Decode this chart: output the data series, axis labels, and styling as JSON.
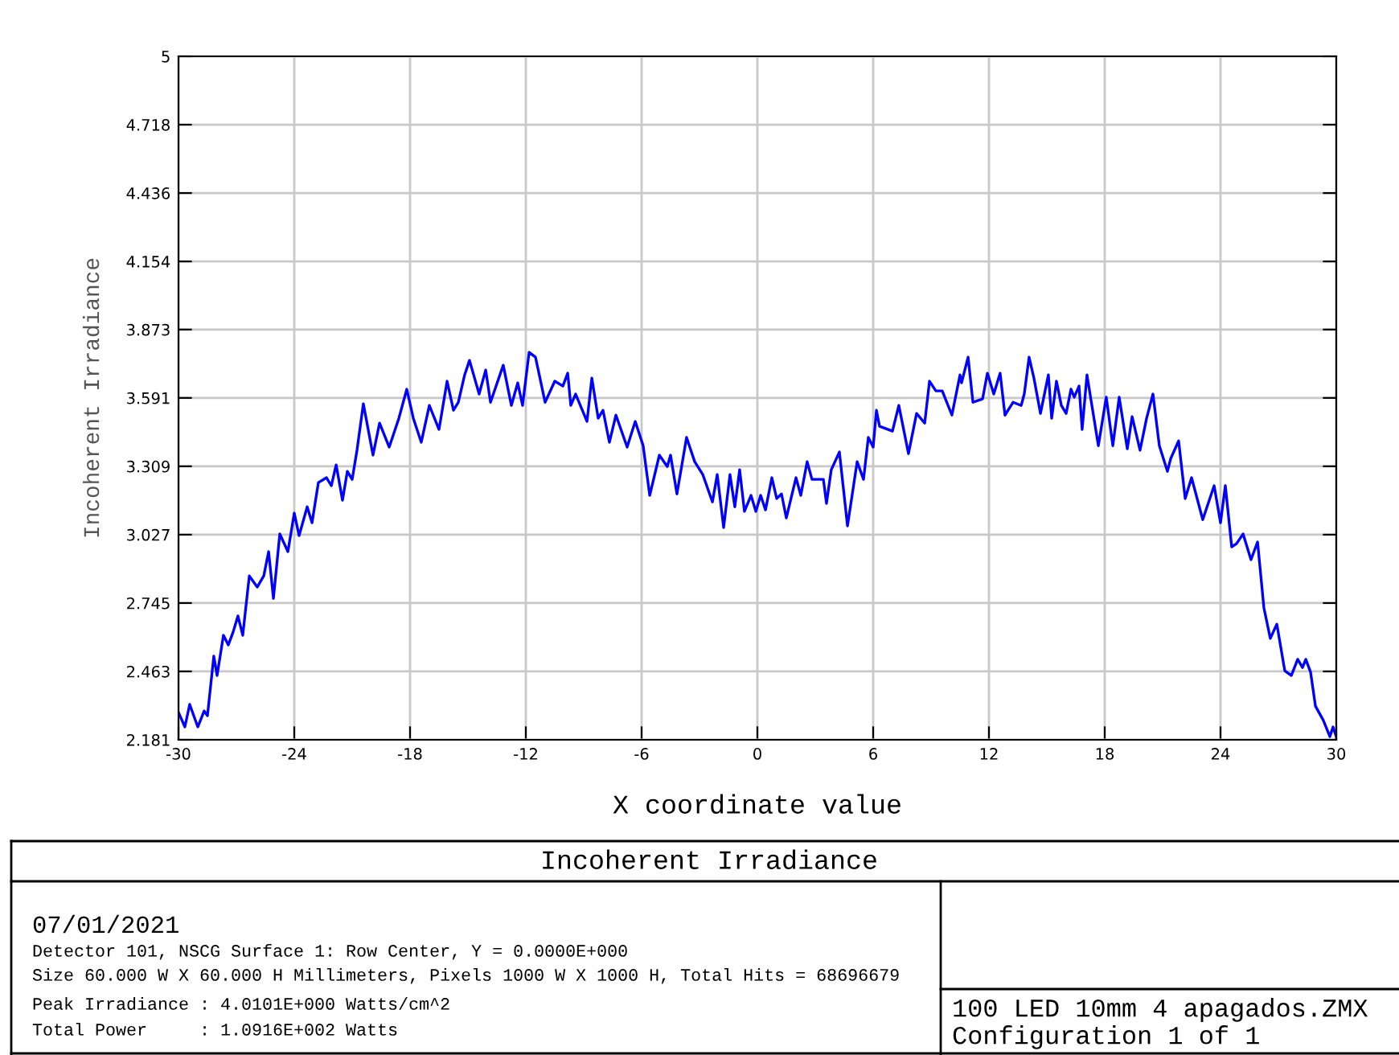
{
  "chart_data": {
    "type": "line",
    "title": "Incoherent Irradiance",
    "xlabel": "X coordinate value",
    "ylabel": "Incoherent Irradiance",
    "annotations": [
      "07/01/2021",
      "Detector 101, NSCG Surface 1: Row Center, Y = 0.0000E+000",
      "Size 60.000 W X 60.000 H Millimeters, Pixels 1000 W X 1000 H, Total Hits = 68696679",
      "Peak Irradiance : 4.0101E+000 Watts/cm^2",
      "Total Power     : 1.0916E+002 Watts",
      "100 LED 10mm 4 apagados.ZMX",
      "Configuration 1 of 1"
    ],
    "xlim": [
      -30,
      30
    ],
    "xticks": [
      -30,
      -24,
      -18,
      -12,
      -6,
      0,
      6,
      12,
      18,
      24,
      30
    ],
    "ylim": [
      2.181,
      5
    ],
    "yticks": [
      2.181,
      2.463,
      2.745,
      3.027,
      3.309,
      3.591,
      3.873,
      4.154,
      4.436,
      4.718,
      5
    ],
    "grid": true,
    "legend": false,
    "marker": "none",
    "line_style": "solid",
    "series": [
      {
        "color": "#0000ff",
        "x": [
          -30,
          -29.67,
          -29.42,
          -29.0,
          -28.67,
          -28.5,
          -28.17,
          -28.0,
          -27.67,
          -27.42,
          -27.17,
          -26.92,
          -26.67,
          -26.33,
          -25.92,
          -25.58,
          -25.33,
          -25.08,
          -24.75,
          -24.33,
          -24.0,
          -23.75,
          -23.33,
          -23.08,
          -22.75,
          -22.33,
          -22.08,
          -21.83,
          -21.5,
          -21.25,
          -21.0,
          -20.75,
          -20.42,
          -19.92,
          -19.58,
          -19.08,
          -18.58,
          -18.17,
          -17.83,
          -17.42,
          -17.0,
          -16.5,
          -16.08,
          -15.75,
          -15.5,
          -15.17,
          -14.92,
          -14.42,
          -14.08,
          -13.83,
          -13.17,
          -12.75,
          -12.42,
          -12.17,
          -11.83,
          -11.5,
          -11.0,
          -10.5,
          -10.08,
          -9.83,
          -9.67,
          -9.42,
          -8.83,
          -8.58,
          -8.25,
          -8.0,
          -7.67,
          -7.33,
          -6.75,
          -6.33,
          -5.92,
          -5.58,
          -5.08,
          -4.67,
          -4.5,
          -4.17,
          -3.67,
          -3.25,
          -2.83,
          -2.33,
          -2.08,
          -1.75,
          -1.42,
          -1.17,
          -0.92,
          -0.67,
          -0.33,
          -0.08,
          0.17,
          0.42,
          0.75,
          1.0,
          1.25,
          1.5,
          2.0,
          2.25,
          2.58,
          2.83,
          3.42,
          3.58,
          3.83,
          4.25,
          4.67,
          5.17,
          5.5,
          5.75,
          6.0,
          6.17,
          6.33,
          7.0,
          7.33,
          7.83,
          8.25,
          8.67,
          8.92,
          9.25,
          9.58,
          10.08,
          10.5,
          10.58,
          10.92,
          11.17,
          11.67,
          11.92,
          12.25,
          12.58,
          12.83,
          13.25,
          13.67,
          13.83,
          14.08,
          14.33,
          14.67,
          15.08,
          15.25,
          15.5,
          15.75,
          16.0,
          16.25,
          16.42,
          16.67,
          16.83,
          17.08,
          17.67,
          18.08,
          18.42,
          18.75,
          19.17,
          19.42,
          19.83,
          20.17,
          20.5,
          20.83,
          21.25,
          21.42,
          21.83,
          22.17,
          22.5,
          23.08,
          23.67,
          24.0,
          24.25,
          24.58,
          24.83,
          25.17,
          25.58,
          25.92,
          26.25,
          26.58,
          26.92,
          27.33,
          27.67,
          28.0,
          28.25,
          28.42,
          28.67,
          28.92,
          29.33,
          29.67,
          29.83,
          30
        ],
        "values": [
          2.294,
          2.234,
          2.327,
          2.234,
          2.3,
          2.28,
          2.526,
          2.446,
          2.612,
          2.572,
          2.625,
          2.692,
          2.612,
          2.857,
          2.811,
          2.857,
          2.957,
          2.764,
          3.03,
          2.957,
          3.116,
          3.023,
          3.142,
          3.076,
          3.242,
          3.262,
          3.229,
          3.315,
          3.169,
          3.288,
          3.255,
          3.375,
          3.567,
          3.355,
          3.487,
          3.388,
          3.507,
          3.627,
          3.507,
          3.408,
          3.56,
          3.461,
          3.66,
          3.54,
          3.573,
          3.686,
          3.746,
          3.607,
          3.706,
          3.573,
          3.726,
          3.56,
          3.653,
          3.56,
          3.779,
          3.759,
          3.573,
          3.66,
          3.64,
          3.693,
          3.56,
          3.607,
          3.494,
          3.673,
          3.507,
          3.54,
          3.408,
          3.52,
          3.388,
          3.494,
          3.394,
          3.189,
          3.355,
          3.308,
          3.355,
          3.195,
          3.428,
          3.328,
          3.275,
          3.162,
          3.275,
          3.056,
          3.275,
          3.142,
          3.295,
          3.123,
          3.189,
          3.123,
          3.189,
          3.129,
          3.262,
          3.176,
          3.195,
          3.096,
          3.262,
          3.189,
          3.328,
          3.255,
          3.255,
          3.156,
          3.295,
          3.368,
          3.063,
          3.328,
          3.255,
          3.428,
          3.388,
          3.54,
          3.474,
          3.454,
          3.56,
          3.361,
          3.527,
          3.487,
          3.66,
          3.62,
          3.62,
          3.52,
          3.686,
          3.653,
          3.759,
          3.573,
          3.587,
          3.693,
          3.607,
          3.693,
          3.52,
          3.573,
          3.56,
          3.607,
          3.759,
          3.673,
          3.527,
          3.686,
          3.507,
          3.66,
          3.56,
          3.527,
          3.627,
          3.594,
          3.64,
          3.461,
          3.686,
          3.394,
          3.594,
          3.394,
          3.594,
          3.381,
          3.514,
          3.375,
          3.507,
          3.607,
          3.394,
          3.288,
          3.341,
          3.414,
          3.176,
          3.262,
          3.089,
          3.229,
          3.076,
          3.229,
          2.977,
          2.99,
          3.03,
          2.924,
          2.997,
          2.725,
          2.599,
          2.658,
          2.466,
          2.446,
          2.513,
          2.479,
          2.513,
          2.459,
          2.32,
          2.261,
          2.194,
          2.234,
          2.194
        ]
      }
    ]
  }
}
